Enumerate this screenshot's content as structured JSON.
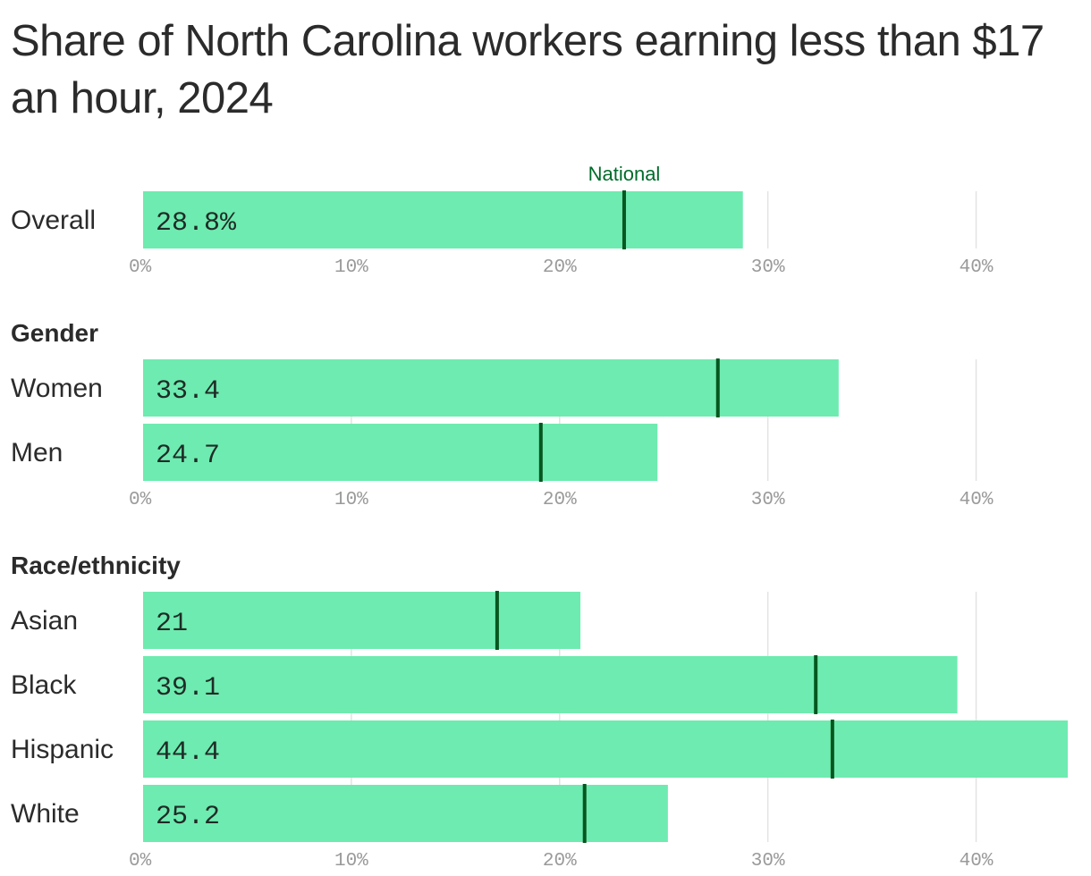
{
  "title": "Share of North Carolina workers earning less than $17 an hour, 2024",
  "colors": {
    "bar": "#6eebb0",
    "marker": "#05561f",
    "grid": "#e3e3e3",
    "national_label": "#006b2b"
  },
  "chart_data": {
    "type": "bar",
    "orientation": "horizontal",
    "xlim": [
      0,
      44.4
    ],
    "ticks": [
      0,
      10,
      20,
      30,
      40
    ],
    "tick_labels": [
      "0%",
      "10%",
      "20%",
      "30%",
      "40%"
    ],
    "marker_label": "National",
    "groups": [
      {
        "name": "",
        "rows": [
          {
            "label": "Overall",
            "value": 28.8,
            "value_label": "28.8%",
            "national": 23.1
          }
        ]
      },
      {
        "name": "Gender",
        "rows": [
          {
            "label": "Women",
            "value": 33.4,
            "value_label": "33.4",
            "national": 27.6
          },
          {
            "label": "Men",
            "value": 24.7,
            "value_label": "24.7",
            "national": 19.1
          }
        ]
      },
      {
        "name": "Race/ethnicity",
        "rows": [
          {
            "label": "Asian",
            "value": 21,
            "value_label": "21",
            "national": 17
          },
          {
            "label": "Black",
            "value": 39.1,
            "value_label": "39.1",
            "national": 32.3
          },
          {
            "label": "Hispanic",
            "value": 44.4,
            "value_label": "44.4",
            "national": 33.1
          },
          {
            "label": "White",
            "value": 25.2,
            "value_label": "25.2",
            "national": 21.2
          }
        ]
      }
    ]
  }
}
